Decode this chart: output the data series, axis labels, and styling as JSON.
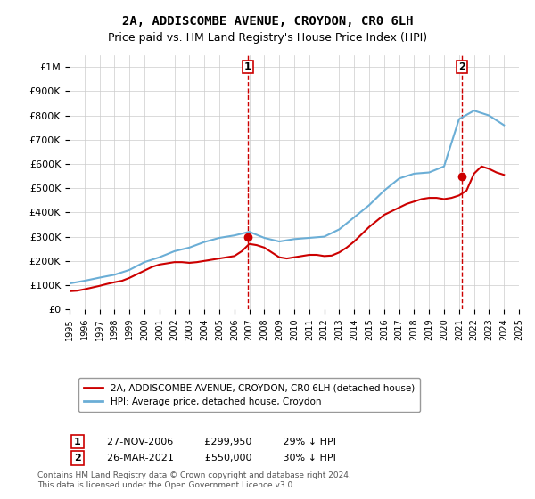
{
  "title": "2A, ADDISCOMBE AVENUE, CROYDON, CR0 6LH",
  "subtitle": "Price paid vs. HM Land Registry's House Price Index (HPI)",
  "hpi_label": "HPI: Average price, detached house, Croydon",
  "property_label": "2A, ADDISCOMBE AVENUE, CROYDON, CR0 6LH (detached house)",
  "footer": "Contains HM Land Registry data © Crown copyright and database right 2024.\nThis data is licensed under the Open Government Licence v3.0.",
  "sale1_date": "27-NOV-2006",
  "sale1_price": "£299,950",
  "sale1_note": "29% ↓ HPI",
  "sale2_date": "26-MAR-2021",
  "sale2_price": "£550,000",
  "sale2_note": "30% ↓ HPI",
  "hpi_color": "#6baed6",
  "property_color": "#cc0000",
  "sale_marker_color": "#cc0000",
  "vline_color": "#cc0000",
  "ylim": [
    0,
    1050000
  ],
  "yticks": [
    0,
    100000,
    200000,
    300000,
    400000,
    500000,
    600000,
    700000,
    800000,
    900000,
    1000000
  ],
  "ytick_labels": [
    "£0",
    "£100K",
    "£200K",
    "£300K",
    "£400K",
    "£500K",
    "£600K",
    "£700K",
    "£800K",
    "£900K",
    "£1M"
  ],
  "hpi_years": [
    1995,
    1996,
    1997,
    1998,
    1999,
    2000,
    2001,
    2002,
    2003,
    2004,
    2005,
    2006,
    2007,
    2008,
    2009,
    2010,
    2011,
    2012,
    2013,
    2014,
    2015,
    2016,
    2017,
    2018,
    2019,
    2020,
    2021,
    2022,
    2023,
    2024
  ],
  "hpi_values": [
    107000,
    118000,
    131000,
    143000,
    163000,
    195000,
    215000,
    240000,
    255000,
    278000,
    295000,
    305000,
    320000,
    295000,
    280000,
    290000,
    295000,
    300000,
    330000,
    380000,
    430000,
    490000,
    540000,
    560000,
    565000,
    590000,
    785000,
    820000,
    800000,
    760000
  ],
  "property_years": [
    1995.0,
    1995.5,
    1996.0,
    1996.5,
    1997.0,
    1997.5,
    1998.0,
    1998.5,
    1999.0,
    1999.5,
    2000.0,
    2000.5,
    2001.0,
    2001.5,
    2002.0,
    2002.5,
    2003.0,
    2003.5,
    2004.0,
    2004.5,
    2005.0,
    2005.5,
    2006.0,
    2006.5,
    2007.0,
    2007.5,
    2008.0,
    2008.5,
    2009.0,
    2009.5,
    2010.0,
    2010.5,
    2011.0,
    2011.5,
    2012.0,
    2012.5,
    2013.0,
    2013.5,
    2014.0,
    2014.5,
    2015.0,
    2015.5,
    2016.0,
    2016.5,
    2017.0,
    2017.5,
    2018.0,
    2018.5,
    2019.0,
    2019.5,
    2020.0,
    2020.5,
    2021.0,
    2021.5,
    2022.0,
    2022.5,
    2023.0,
    2023.5,
    2024.0
  ],
  "property_values": [
    75000,
    77000,
    83000,
    90000,
    97000,
    105000,
    112000,
    118000,
    130000,
    145000,
    160000,
    175000,
    185000,
    190000,
    195000,
    195000,
    192000,
    195000,
    200000,
    205000,
    210000,
    215000,
    220000,
    240000,
    270000,
    265000,
    255000,
    235000,
    215000,
    210000,
    215000,
    220000,
    225000,
    225000,
    220000,
    222000,
    235000,
    255000,
    280000,
    310000,
    340000,
    365000,
    390000,
    405000,
    420000,
    435000,
    445000,
    455000,
    460000,
    460000,
    455000,
    460000,
    470000,
    490000,
    560000,
    590000,
    580000,
    565000,
    555000
  ],
  "sale1_x": 2006.9,
  "sale1_y": 299950,
  "sale2_x": 2021.2,
  "sale2_y": 550000,
  "xmin": 1995,
  "xmax": 2025
}
